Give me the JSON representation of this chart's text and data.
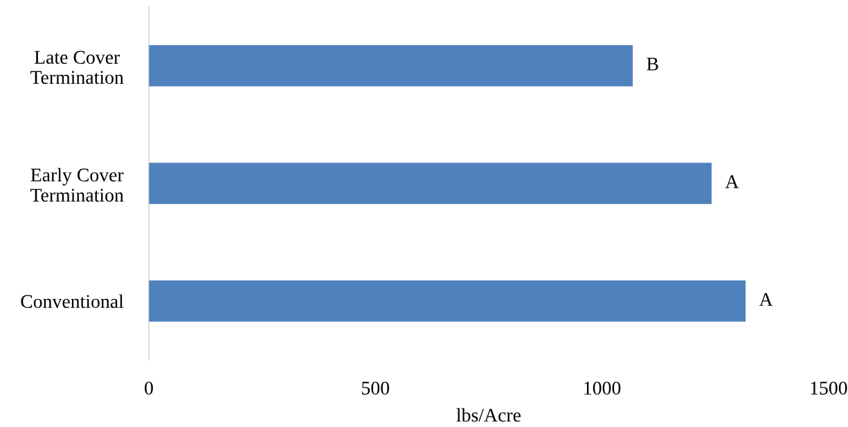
{
  "chart_data": {
    "type": "bar",
    "orientation": "horizontal",
    "xlabel": "lbs/Acre",
    "categories": [
      "Late Cover\nTermination",
      "Early Cover\nTermination",
      "Conventional"
    ],
    "values": [
      1068,
      1242,
      1317
    ],
    "color": "#4f81bd",
    "xlim": [
      0,
      1500
    ],
    "xticks": [
      0,
      500,
      1000,
      1500
    ],
    "grid": false,
    "legend": false,
    "annotations": [
      {
        "text": "B",
        "x": 1068,
        "y": "Late Cover\nTermination"
      },
      {
        "text": "A",
        "x": 1242,
        "y": "Early Cover\nTermination"
      },
      {
        "text": "A",
        "x": 1317,
        "y": "Conventional"
      }
    ]
  }
}
